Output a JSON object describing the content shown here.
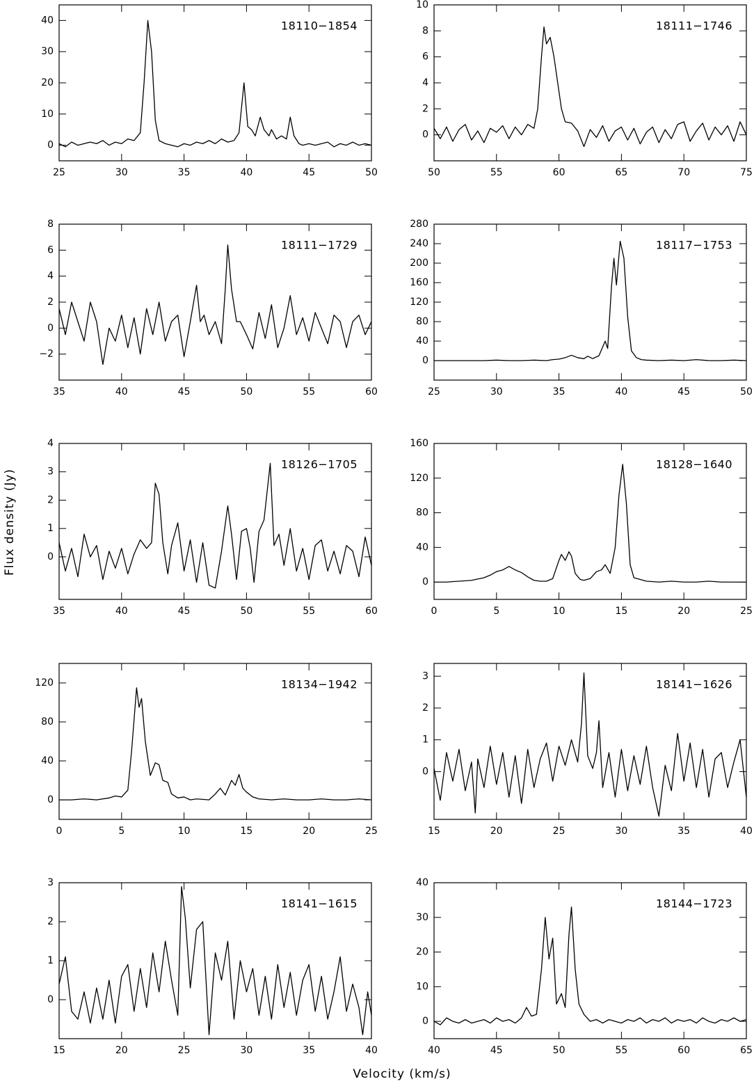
{
  "x_label": "Velocity (km/s)",
  "y_label": "Flux density (Jy)",
  "chart_data": [
    {
      "type": "line",
      "title": "18110−1854",
      "color": "#000000",
      "xlim": [
        25,
        50
      ],
      "ylim": [
        -5,
        45
      ],
      "xticks": [
        25,
        30,
        35,
        40,
        45,
        50
      ],
      "yticks": [
        0,
        10,
        20,
        30,
        40
      ],
      "x": [
        25,
        25.5,
        26,
        26.5,
        27,
        27.5,
        28,
        28.5,
        29,
        29.5,
        30,
        30.5,
        31,
        31.5,
        31.8,
        32.1,
        32.4,
        32.7,
        33,
        33.5,
        34,
        34.5,
        35,
        35.5,
        36,
        36.5,
        37,
        37.5,
        38,
        38.5,
        39,
        39.4,
        39.8,
        40.1,
        40.4,
        40.7,
        41.1,
        41.4,
        41.8,
        42,
        42.4,
        42.8,
        43.2,
        43.5,
        43.8,
        44.2,
        44.5,
        45,
        45.5,
        46,
        46.5,
        47,
        47.5,
        48,
        48.5,
        49,
        49.5,
        50
      ],
      "values": [
        0.5,
        -0.5,
        1,
        0,
        0.5,
        1,
        0.5,
        1.5,
        0,
        1,
        0.5,
        2,
        1.5,
        4,
        20,
        40,
        30,
        8,
        1.5,
        0.5,
        0,
        -0.5,
        0.5,
        0,
        1,
        0.5,
        1.5,
        0.5,
        2,
        1,
        1.5,
        4,
        20,
        6,
        5,
        3,
        9,
        5,
        3,
        5,
        2,
        3,
        2,
        9,
        3,
        0.5,
        0,
        0.5,
        0,
        0.5,
        1,
        -0.5,
        0.5,
        0,
        1,
        0,
        0.5,
        0
      ]
    },
    {
      "type": "line",
      "title": "18111−1746",
      "color": "#000000",
      "xlim": [
        50,
        75
      ],
      "ylim": [
        -2,
        10
      ],
      "xticks": [
        50,
        55,
        60,
        65,
        70,
        75
      ],
      "yticks": [
        0,
        2,
        4,
        6,
        8,
        10
      ],
      "x": [
        50,
        50.5,
        51,
        51.5,
        52,
        52.5,
        53,
        53.5,
        54,
        54.5,
        55,
        55.5,
        56,
        56.5,
        57,
        57.5,
        58,
        58.3,
        58.6,
        58.8,
        59,
        59.3,
        59.6,
        59.9,
        60.2,
        60.5,
        61,
        61.5,
        62,
        62.5,
        63,
        63.5,
        64,
        64.5,
        65,
        65.5,
        66,
        66.5,
        67,
        67.5,
        68,
        68.5,
        69,
        69.5,
        70,
        70.5,
        71,
        71.5,
        72,
        72.5,
        73,
        73.5,
        74,
        74.5,
        75
      ],
      "values": [
        0.5,
        -0.3,
        0.6,
        -0.5,
        0.4,
        0.8,
        -0.4,
        0.3,
        -0.6,
        0.5,
        0.2,
        0.7,
        -0.3,
        0.6,
        0,
        0.8,
        0.5,
        2,
        6,
        8.3,
        7,
        7.5,
        6,
        4,
        2,
        1,
        0.9,
        0.3,
        -0.9,
        0.4,
        -0.2,
        0.7,
        -0.5,
        0.3,
        0.6,
        -0.4,
        0.5,
        -0.7,
        0.2,
        0.6,
        -0.6,
        0.4,
        -0.3,
        0.8,
        1,
        -0.5,
        0.3,
        0.9,
        -0.4,
        0.6,
        0,
        0.7,
        -0.5,
        1,
        0
      ]
    },
    {
      "type": "line",
      "title": "18111−1729",
      "color": "#000000",
      "xlim": [
        35,
        60
      ],
      "ylim": [
        -4,
        8
      ],
      "xticks": [
        35,
        40,
        45,
        50,
        55,
        60
      ],
      "yticks": [
        {
          "value": -2,
          "label": "−2"
        },
        0,
        2,
        4,
        6,
        8
      ],
      "x": [
        35,
        35.5,
        36,
        36.5,
        37,
        37.5,
        38,
        38.5,
        39,
        39.5,
        40,
        40.5,
        41,
        41.5,
        42,
        42.5,
        43,
        43.5,
        44,
        44.5,
        45,
        45.5,
        46,
        46.3,
        46.6,
        47,
        47.5,
        48,
        48.3,
        48.5,
        48.8,
        49.2,
        49.5,
        50,
        50.5,
        51,
        51.5,
        52,
        52.5,
        53,
        53.5,
        54,
        54.5,
        55,
        55.5,
        56,
        56.5,
        57,
        57.5,
        58,
        58.5,
        59,
        59.5,
        60
      ],
      "values": [
        1.5,
        -0.5,
        2,
        0.5,
        -1,
        2,
        0.5,
        -2.8,
        0,
        -1,
        1,
        -1.5,
        0.8,
        -2,
        1.5,
        -0.5,
        2,
        -1,
        0.5,
        1,
        -2.2,
        0.5,
        3.3,
        0.5,
        1,
        -0.5,
        0.5,
        -1.2,
        3,
        6.4,
        3,
        0.5,
        0.5,
        -0.5,
        -1.6,
        1.2,
        -0.8,
        1.8,
        -1.5,
        0,
        2.5,
        -0.5,
        0.8,
        -1,
        1.2,
        0,
        -1.2,
        1,
        0.5,
        -1.5,
        0.5,
        1,
        -0.5,
        0.5
      ]
    },
    {
      "type": "line",
      "title": "18117−1753",
      "color": "#000000",
      "xlim": [
        25,
        50
      ],
      "ylim": [
        -40,
        280
      ],
      "xticks": [
        25,
        30,
        35,
        40,
        45,
        50
      ],
      "yticks": [
        0,
        40,
        80,
        120,
        160,
        200,
        240,
        280
      ],
      "x": [
        25,
        26,
        27,
        28,
        29,
        30,
        31,
        32,
        33,
        34,
        34.5,
        35,
        35.5,
        36,
        36.5,
        37,
        37.3,
        37.7,
        38.2,
        38.7,
        38.9,
        39.2,
        39.4,
        39.6,
        39.9,
        40.2,
        40.5,
        40.8,
        41.2,
        41.6,
        42,
        43,
        44,
        45,
        46,
        47,
        48,
        49,
        50
      ],
      "values": [
        0,
        0,
        0,
        0,
        0,
        1,
        0,
        0,
        1,
        0,
        2,
        3,
        6,
        11,
        6,
        4,
        9,
        4,
        10,
        40,
        25,
        150,
        210,
        155,
        245,
        210,
        90,
        20,
        6,
        2,
        1,
        0,
        1,
        0,
        2,
        0,
        0,
        1,
        0
      ]
    },
    {
      "type": "line",
      "title": "18126−1705",
      "color": "#000000",
      "xlim": [
        35,
        60
      ],
      "ylim": [
        -1.5,
        4
      ],
      "xticks": [
        35,
        40,
        45,
        50,
        55,
        60
      ],
      "yticks": [
        0,
        1,
        2,
        3,
        4
      ],
      "x": [
        35,
        35.5,
        36,
        36.5,
        37,
        37.5,
        38,
        38.5,
        39,
        39.5,
        40,
        40.5,
        41,
        41.5,
        42,
        42.4,
        42.7,
        43,
        43.3,
        43.7,
        44,
        44.5,
        45,
        45.5,
        46,
        46.5,
        47,
        47.5,
        48,
        48.5,
        48.8,
        49.2,
        49.6,
        50,
        50.3,
        50.6,
        51,
        51.4,
        51.9,
        52.2,
        52.6,
        53,
        53.5,
        54,
        54.5,
        55,
        55.5,
        56,
        56.5,
        57,
        57.5,
        58,
        58.5,
        59,
        59.5,
        60
      ],
      "values": [
        0.5,
        -0.5,
        0.3,
        -0.7,
        0.8,
        0,
        0.4,
        -0.8,
        0.2,
        -0.4,
        0.3,
        -0.6,
        0.1,
        0.6,
        0.3,
        0.5,
        2.6,
        2.2,
        0.5,
        -0.6,
        0.4,
        1.2,
        -0.5,
        0.6,
        -0.9,
        0.5,
        -1,
        -1.1,
        0.2,
        1.8,
        0.8,
        -0.8,
        0.9,
        1,
        0.3,
        -0.9,
        0.9,
        1.3,
        3.3,
        0.4,
        0.8,
        -0.3,
        1,
        -0.5,
        0.3,
        -0.8,
        0.4,
        0.6,
        -0.5,
        0.2,
        -0.6,
        0.4,
        0.2,
        -0.7,
        0.7,
        -0.3
      ]
    },
    {
      "type": "line",
      "title": "18128−1640",
      "color": "#000000",
      "xlim": [
        0,
        25
      ],
      "ylim": [
        -20,
        160
      ],
      "xticks": [
        0,
        5,
        10,
        15,
        20,
        25
      ],
      "yticks": [
        0,
        40,
        80,
        120,
        160
      ],
      "x": [
        0,
        1,
        2,
        3,
        4,
        4.5,
        5,
        5.5,
        6,
        6.5,
        7,
        7.5,
        8,
        8.5,
        9,
        9.5,
        10,
        10.2,
        10.5,
        10.8,
        11,
        11.3,
        11.7,
        12,
        12.5,
        13,
        13.4,
        13.7,
        14.1,
        14.5,
        14.8,
        15.1,
        15.4,
        15.7,
        16,
        16.5,
        17,
        18,
        19,
        20,
        21,
        22,
        23,
        24,
        25
      ],
      "values": [
        0,
        0,
        1,
        2,
        5,
        8,
        12,
        14,
        18,
        14,
        11,
        6,
        2,
        1,
        1,
        4,
        25,
        32,
        25,
        35,
        30,
        10,
        3,
        2,
        4,
        12,
        14,
        20,
        10,
        40,
        100,
        136,
        90,
        20,
        5,
        3,
        1,
        0,
        1,
        0,
        0,
        1,
        0,
        0,
        0
      ]
    },
    {
      "type": "line",
      "title": "18134−1942",
      "color": "#000000",
      "xlim": [
        0,
        25
      ],
      "ylim": [
        -20,
        140
      ],
      "xticks": [
        0,
        5,
        10,
        15,
        20,
        25
      ],
      "yticks": [
        0,
        40,
        80,
        120
      ],
      "x": [
        0,
        1,
        2,
        3,
        4,
        4.5,
        5,
        5.5,
        5.8,
        6.2,
        6.4,
        6.6,
        6.9,
        7.3,
        7.7,
        8,
        8.3,
        8.7,
        9,
        9.5,
        10,
        10.5,
        11,
        12,
        12.5,
        12.9,
        13.3,
        13.8,
        14.1,
        14.4,
        14.7,
        15,
        15.5,
        16,
        17,
        18,
        19,
        20,
        21,
        22,
        23,
        24,
        25
      ],
      "values": [
        0,
        0,
        1,
        0,
        2,
        4,
        3,
        10,
        50,
        115,
        95,
        104,
        60,
        25,
        38,
        36,
        20,
        18,
        6,
        2,
        3,
        0,
        1,
        0,
        6,
        12,
        5,
        20,
        15,
        26,
        12,
        8,
        3,
        1,
        0,
        1,
        0,
        0,
        1,
        0,
        0,
        1,
        0
      ]
    },
    {
      "type": "line",
      "title": "18141−1626",
      "color": "#000000",
      "xlim": [
        15,
        40
      ],
      "ylim": [
        -1.5,
        3.4
      ],
      "xticks": [
        15,
        20,
        25,
        30,
        35,
        40
      ],
      "yticks": [
        0,
        1,
        2,
        3
      ],
      "x": [
        15,
        15.5,
        16,
        16.5,
        17,
        17.5,
        18,
        18.3,
        18.5,
        19,
        19.5,
        20,
        20.5,
        21,
        21.5,
        22,
        22.5,
        23,
        23.5,
        24,
        24.5,
        25,
        25.5,
        26,
        26.5,
        26.8,
        27,
        27.3,
        27.7,
        28,
        28.2,
        28.5,
        29,
        29.5,
        30,
        30.5,
        31,
        31.5,
        32,
        32.5,
        33,
        33.5,
        34,
        34.5,
        35,
        35.5,
        36,
        36.5,
        37,
        37.5,
        38,
        38.5,
        39,
        39.5,
        40
      ],
      "values": [
        0.1,
        -0.9,
        0.6,
        -0.3,
        0.7,
        -0.6,
        0.3,
        -1.3,
        0.4,
        -0.5,
        0.8,
        -0.4,
        0.6,
        -0.8,
        0.5,
        -1,
        0.7,
        -0.5,
        0.4,
        0.9,
        -0.3,
        0.8,
        0.2,
        1,
        0.3,
        1.5,
        3.1,
        0.5,
        0.1,
        0.6,
        1.6,
        -0.5,
        0.6,
        -0.8,
        0.7,
        -0.6,
        0.5,
        -0.4,
        0.8,
        -0.5,
        -1.4,
        0.2,
        -0.6,
        1.2,
        -0.3,
        0.9,
        -0.5,
        0.7,
        -0.8,
        0.4,
        0.6,
        -0.5,
        0.3,
        1,
        -0.8
      ]
    },
    {
      "type": "line",
      "title": "18141−1615",
      "color": "#000000",
      "xlim": [
        15,
        40
      ],
      "ylim": [
        -1,
        3
      ],
      "xticks": [
        15,
        20,
        25,
        30,
        35,
        40
      ],
      "yticks": [
        0,
        1,
        2,
        3
      ],
      "x": [
        15,
        15.5,
        16,
        16.5,
        17,
        17.5,
        18,
        18.5,
        19,
        19.5,
        20,
        20.5,
        21,
        21.5,
        22,
        22.5,
        23,
        23.5,
        24,
        24.5,
        24.8,
        25.1,
        25.5,
        26,
        26.5,
        27,
        27.5,
        28,
        28.5,
        29,
        29.5,
        30,
        30.5,
        31,
        31.5,
        32,
        32.5,
        33,
        33.5,
        34,
        34.5,
        35,
        35.5,
        36,
        36.5,
        37,
        37.5,
        38,
        38.5,
        39,
        39.3,
        39.7,
        40
      ],
      "values": [
        0.4,
        1.1,
        -0.3,
        -0.5,
        0.2,
        -0.6,
        0.3,
        -0.5,
        0.5,
        -0.6,
        0.6,
        0.9,
        -0.3,
        0.8,
        -0.2,
        1.2,
        0.2,
        1.5,
        0.5,
        -0.4,
        2.9,
        2.1,
        0.3,
        1.8,
        2,
        -0.9,
        1.2,
        0.5,
        1.5,
        -0.5,
        1,
        0.2,
        0.8,
        -0.4,
        0.6,
        -0.5,
        0.9,
        -0.2,
        0.7,
        -0.4,
        0.5,
        0.9,
        -0.3,
        0.6,
        -0.5,
        0.2,
        1.1,
        -0.3,
        0.4,
        -0.2,
        -0.9,
        0.2,
        -0.4
      ]
    },
    {
      "type": "line",
      "title": "18144−1723",
      "color": "#000000",
      "xlim": [
        40,
        65
      ],
      "ylim": [
        -5,
        40
      ],
      "xticks": [
        40,
        45,
        50,
        55,
        60,
        65
      ],
      "yticks": [
        0,
        10,
        20,
        30,
        40
      ],
      "x": [
        40,
        40.5,
        41,
        41.5,
        42,
        42.5,
        43,
        43.5,
        44,
        44.5,
        45,
        45.5,
        46,
        46.5,
        47,
        47.4,
        47.8,
        48.2,
        48.6,
        48.9,
        49.2,
        49.5,
        49.8,
        50.2,
        50.5,
        50.8,
        51,
        51.3,
        51.6,
        52,
        52.5,
        53,
        53.5,
        54,
        54.5,
        55,
        55.5,
        56,
        56.5,
        57,
        57.5,
        58,
        58.5,
        59,
        59.5,
        60,
        60.5,
        61,
        61.5,
        62,
        62.5,
        63,
        63.5,
        64,
        64.5,
        65
      ],
      "values": [
        0,
        -1,
        1,
        0,
        -0.5,
        0.5,
        -0.5,
        0,
        0.5,
        -0.5,
        1,
        0,
        0.5,
        -0.5,
        1,
        4,
        1.5,
        2,
        15,
        30,
        18,
        24,
        5,
        8,
        4,
        25,
        33,
        15,
        5,
        2,
        0,
        0.5,
        -0.5,
        0.5,
        0,
        -0.5,
        0.5,
        0,
        1,
        -0.5,
        0.5,
        0,
        1,
        -0.5,
        0.5,
        0,
        0.5,
        -0.5,
        1,
        0,
        -0.5,
        0.5,
        0,
        1,
        0,
        0.5
      ]
    }
  ]
}
